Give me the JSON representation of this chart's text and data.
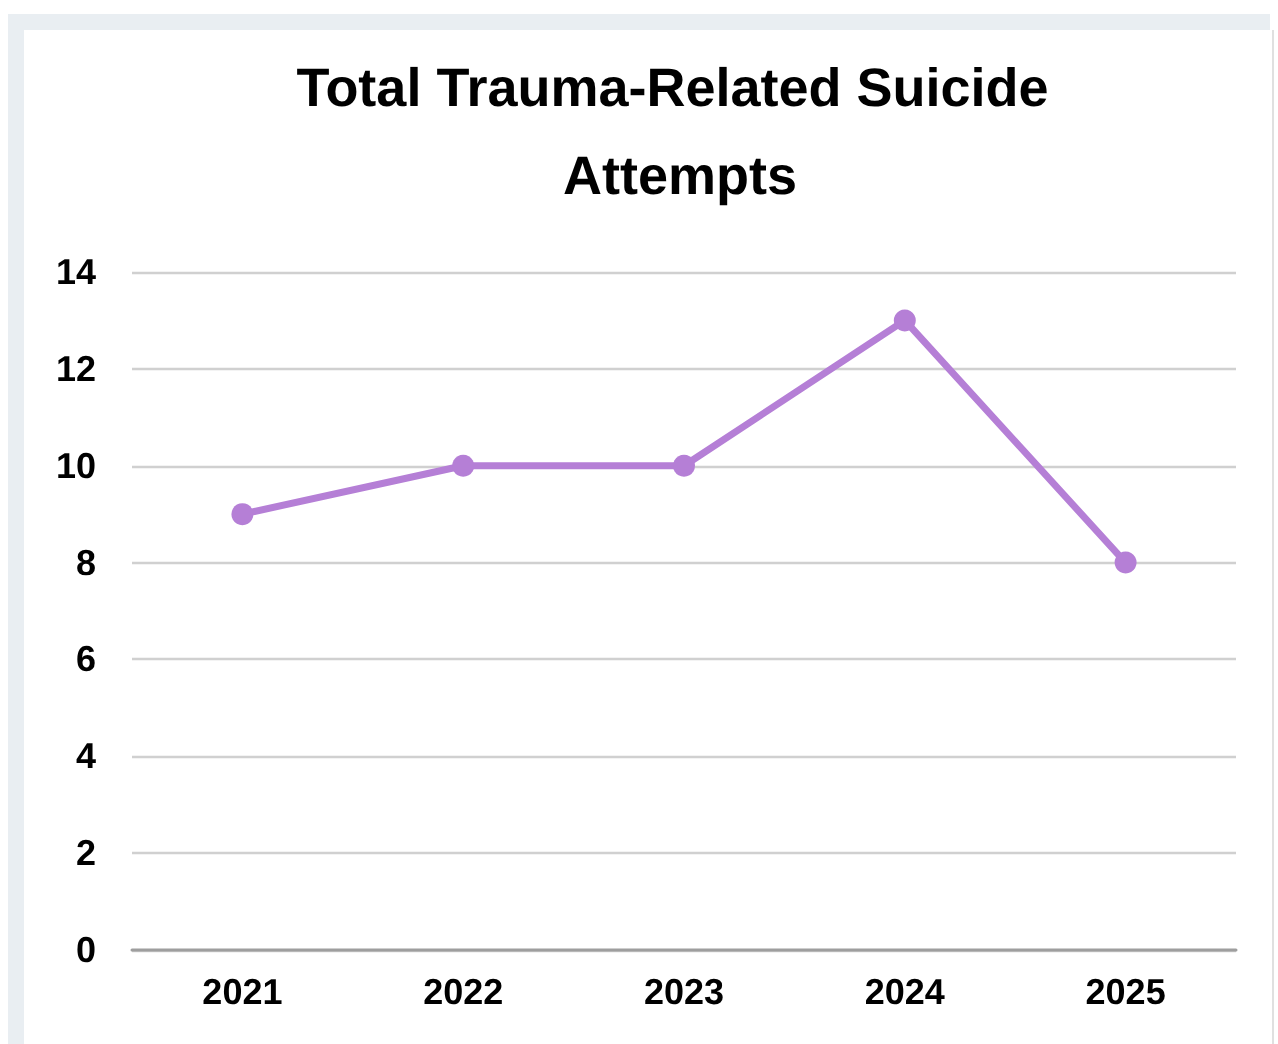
{
  "chart_data": {
    "type": "line",
    "title": "Total Trauma-Related Suicide Attempts",
    "categories": [
      "2021",
      "2022",
      "2023",
      "2024",
      "2025"
    ],
    "values": [
      9,
      10,
      10,
      13,
      8
    ],
    "color": "#b57fd6",
    "ylim": [
      0,
      14
    ],
    "yticks": [
      0,
      2,
      4,
      6,
      8,
      10,
      12,
      14
    ],
    "grid": "y",
    "marker": "circle",
    "line_style": "solid"
  }
}
